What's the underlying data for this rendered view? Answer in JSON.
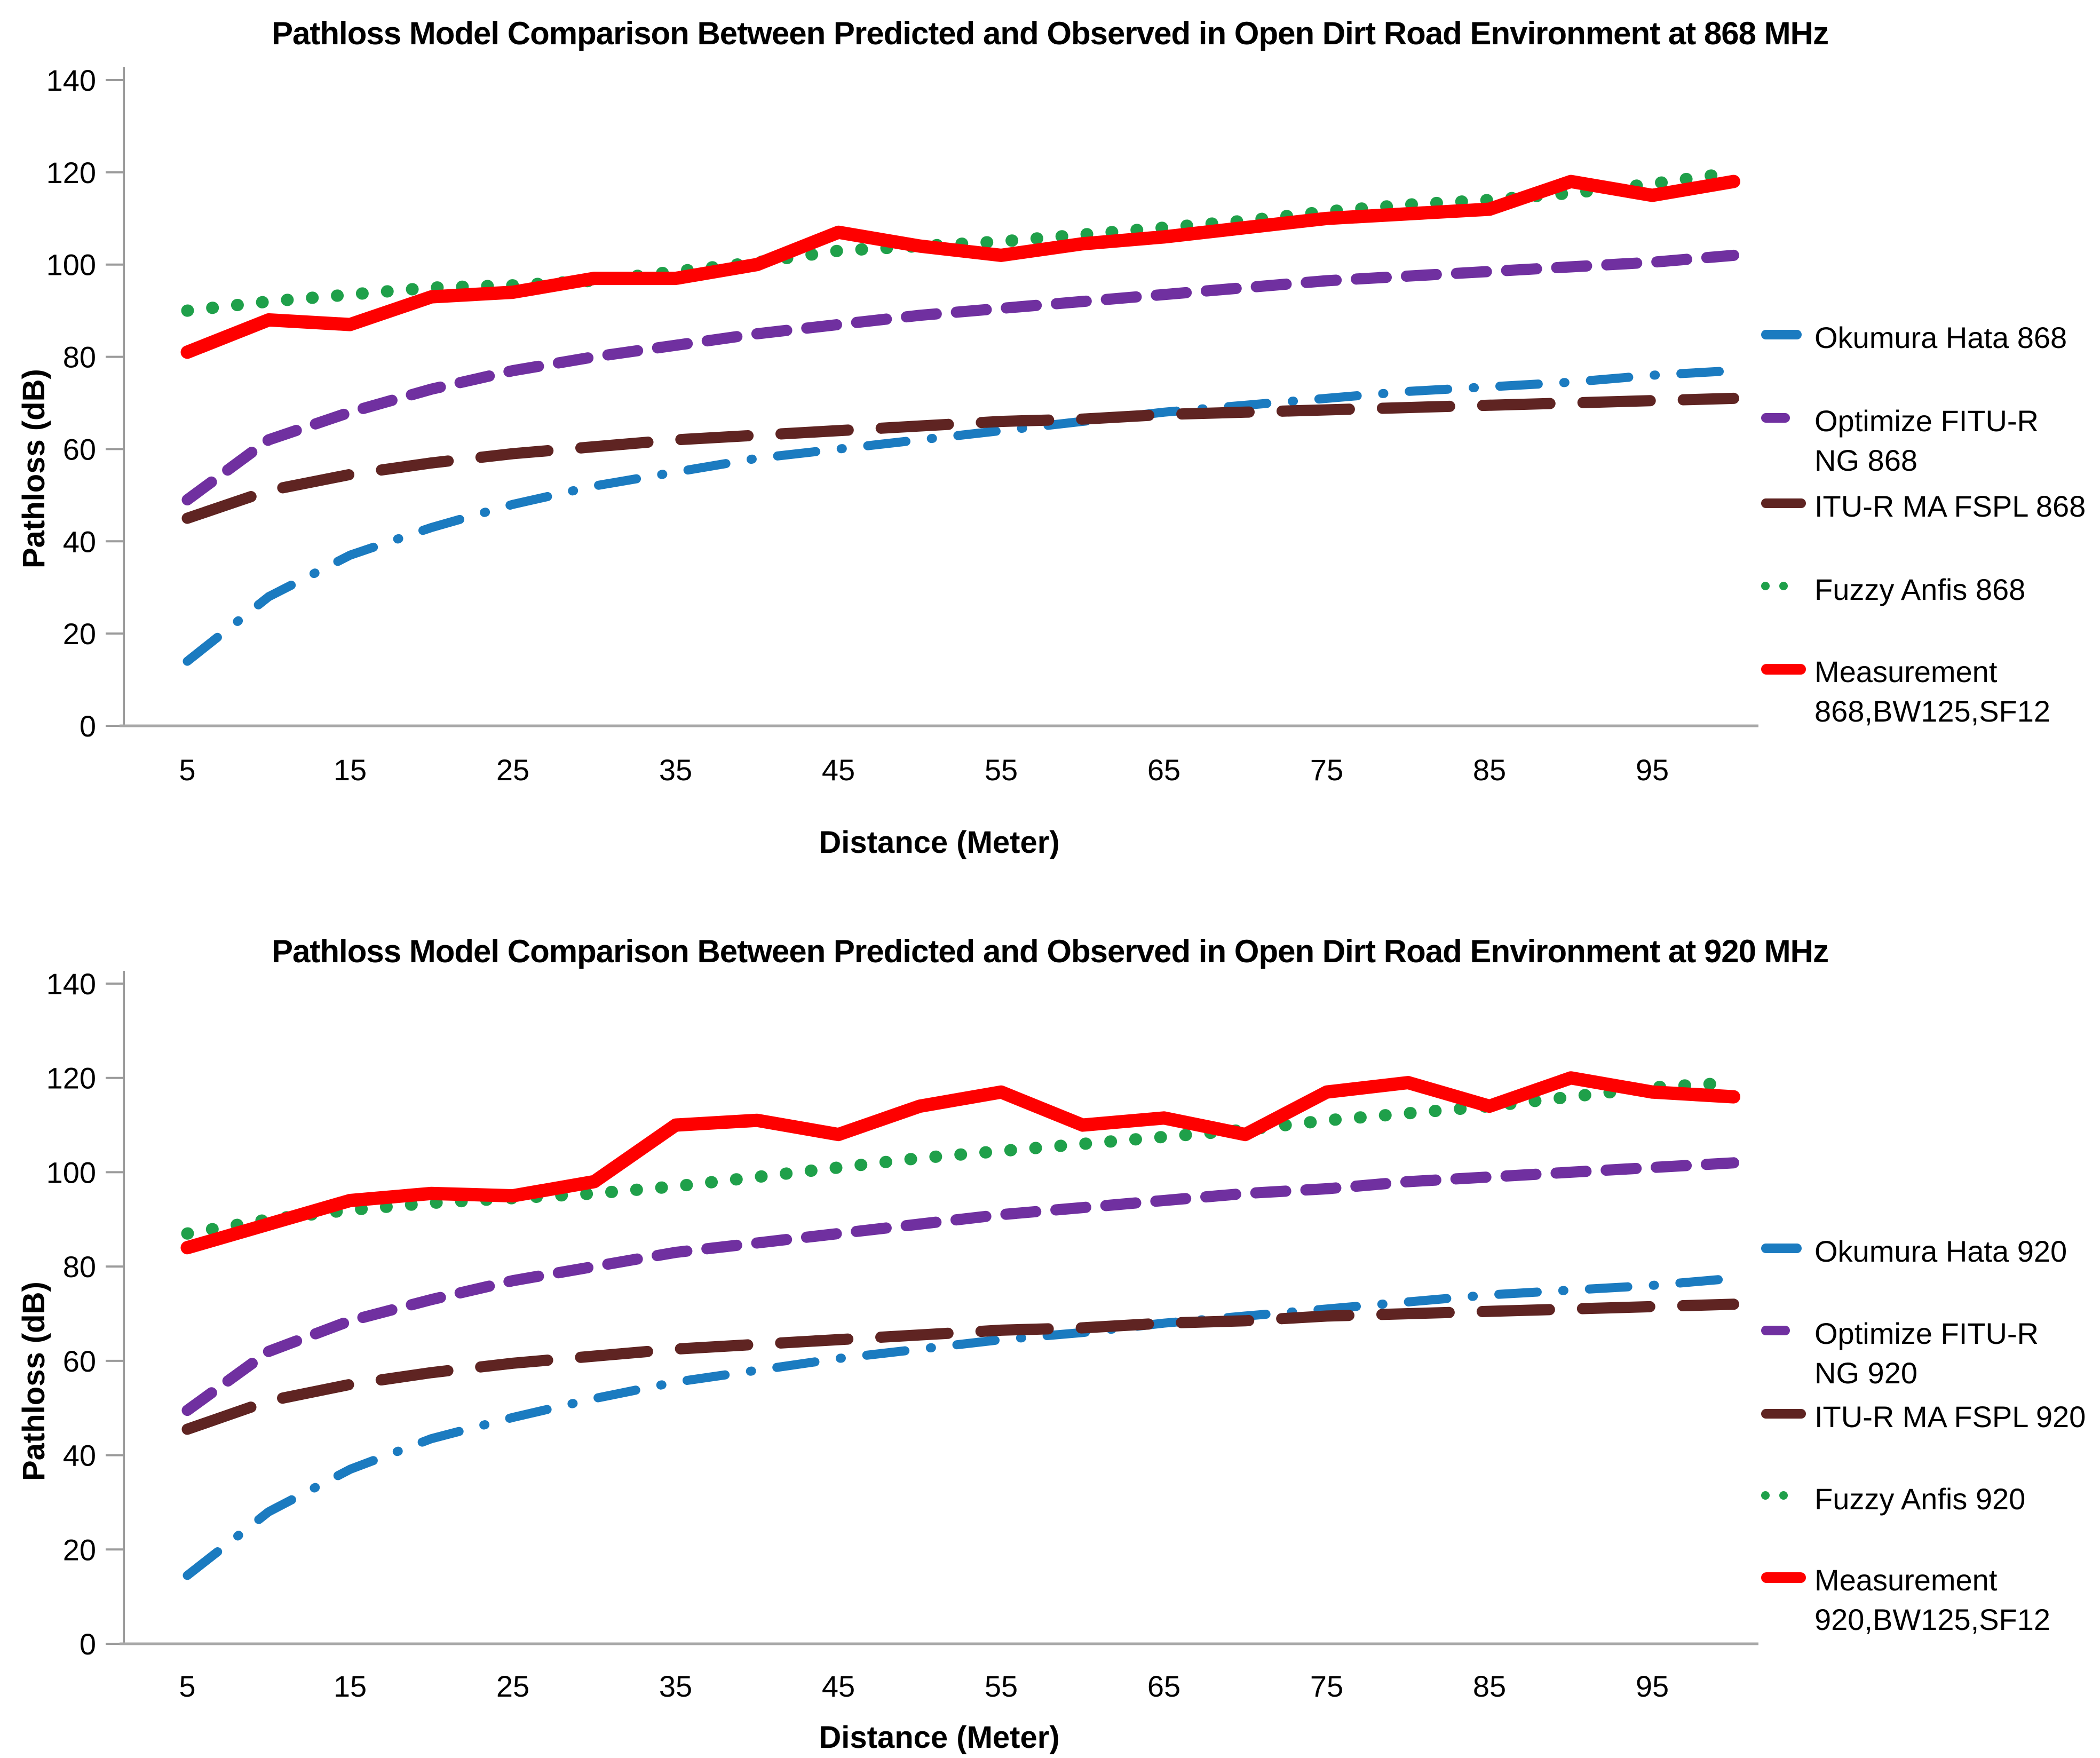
{
  "chart_data": [
    {
      "type": "line",
      "title": "Pathloss Model Comparison Between Predicted and Observed in Open Dirt Road Environment at 868 MHz",
      "xlabel": "Distance (Meter)",
      "ylabel": "Pathloss (dB)",
      "ylim": [
        0,
        140
      ],
      "yticks": [
        0,
        20,
        40,
        60,
        80,
        100,
        120,
        140
      ],
      "xticks": [
        5,
        15,
        25,
        35,
        45,
        55,
        65,
        75,
        85,
        95
      ],
      "x": [
        5,
        10,
        15,
        20,
        25,
        30,
        35,
        40,
        45,
        50,
        55,
        60,
        65,
        70,
        75,
        80,
        85,
        90,
        95,
        100
      ],
      "grid": false,
      "legend_position": "right",
      "series": [
        {
          "name": "Okumura Hata 868",
          "color": "#1B7BC0",
          "style": "dashdot",
          "values": [
            14,
            28,
            37,
            43,
            48,
            52,
            55,
            58,
            60,
            62,
            64,
            66,
            68,
            69.5,
            71,
            72.5,
            73.5,
            74.5,
            76,
            77
          ]
        },
        {
          "name": "Optimize FITU-R\nNG 868",
          "color": "#7030A0",
          "style": "dash",
          "values": [
            49,
            62,
            68,
            73,
            77,
            80,
            82.5,
            85,
            87,
            89,
            90.5,
            92,
            93.5,
            95,
            96.5,
            97.5,
            98.5,
            99.5,
            100.5,
            102
          ]
        },
        {
          "name": "ITU-R MA FSPL 868",
          "color": "#5F2422",
          "style": "longdash",
          "values": [
            45,
            51,
            54.5,
            57,
            59,
            60.5,
            62,
            63,
            64,
            65,
            66,
            66.5,
            67.5,
            68,
            68.5,
            69,
            69.5,
            70,
            70.5,
            71
          ]
        },
        {
          "name": "Fuzzy Anfis 868",
          "color": "#1FA04A",
          "style": "dot",
          "values": [
            90,
            92,
            93.5,
            95,
            95.5,
            96.5,
            98.5,
            100.5,
            103,
            104,
            105,
            106.5,
            108,
            109.5,
            111.5,
            113,
            114,
            115.5,
            117.5,
            120
          ]
        },
        {
          "name": "Measurement\n868,BW125,SF12",
          "color": "#FE0000",
          "style": "solid",
          "values": [
            81,
            88,
            87,
            93,
            94,
            97,
            97,
            100,
            107,
            104,
            102,
            104.5,
            106,
            108,
            110,
            111,
            112,
            118,
            115,
            118
          ]
        }
      ]
    },
    {
      "type": "line",
      "title": "Pathloss Model Comparison Between Predicted and Observed in Open Dirt Road Environment at 920 MHz",
      "xlabel": "Distance (Meter)",
      "ylabel": "Pathloss (dB)",
      "ylim": [
        0,
        140
      ],
      "yticks": [
        0,
        20,
        40,
        60,
        80,
        100,
        120,
        140
      ],
      "xticks": [
        5,
        15,
        25,
        35,
        45,
        55,
        65,
        75,
        85,
        95
      ],
      "x": [
        5,
        10,
        15,
        20,
        25,
        30,
        35,
        40,
        45,
        50,
        55,
        60,
        65,
        70,
        75,
        80,
        85,
        90,
        95,
        100
      ],
      "grid": false,
      "legend_position": "right",
      "series": [
        {
          "name": "Okumura Hata 920",
          "color": "#1B7BC0",
          "style": "dashdot",
          "values": [
            14.5,
            28,
            37,
            43.5,
            48,
            52,
            55.5,
            58,
            60.5,
            62.5,
            64.5,
            66,
            68,
            69.5,
            71,
            72.5,
            74,
            75,
            76,
            77.5
          ]
        },
        {
          "name": "Optimize FITU-R\nNG 920",
          "color": "#7030A0",
          "style": "dash",
          "values": [
            49.5,
            62,
            68.5,
            73,
            77,
            80,
            83,
            85,
            87,
            89,
            91,
            92.5,
            94,
            95.5,
            96.5,
            98,
            99,
            100,
            101,
            102
          ]
        },
        {
          "name": "ITU-R MA FSPL 920",
          "color": "#5F2422",
          "style": "longdash",
          "values": [
            45.5,
            51.5,
            55,
            57.5,
            59.5,
            61,
            62.5,
            63.5,
            64.5,
            65.5,
            66.5,
            67,
            68,
            68.5,
            69.5,
            70,
            70.5,
            71,
            71.5,
            72
          ]
        },
        {
          "name": "Fuzzy Anfis 920",
          "color": "#1FA04A",
          "style": "dot",
          "values": [
            87,
            90,
            92,
            93.5,
            94.5,
            95.5,
            97,
            99,
            101,
            103,
            104.5,
            106,
            107.5,
            109,
            111,
            112.5,
            114,
            116,
            118,
            119
          ]
        },
        {
          "name": "Measurement\n920,BW125,SF12",
          "color": "#FE0000",
          "style": "solid",
          "values": [
            84,
            89,
            94,
            95.5,
            95,
            98,
            110,
            111,
            108,
            114,
            117,
            110,
            111.5,
            108,
            117,
            119,
            114,
            120,
            117,
            116
          ]
        }
      ]
    }
  ]
}
